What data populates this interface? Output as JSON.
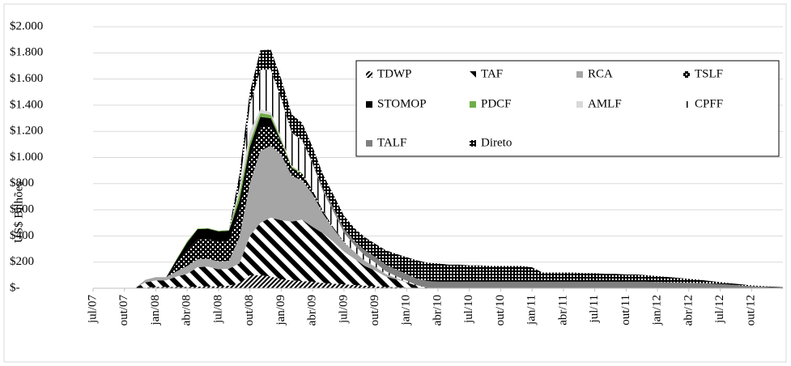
{
  "chart_data": {
    "type": "stacked_area",
    "y_label": "US$ Bilhões",
    "categories": [
      "jul/07",
      null,
      null,
      "out/07",
      null,
      null,
      "jan/08",
      null,
      null,
      "abr/08",
      null,
      null,
      "jul/08",
      null,
      null,
      "out/08",
      null,
      null,
      "jan/09",
      null,
      null,
      "abr/09",
      null,
      null,
      "jul/09",
      null,
      null,
      "out/09",
      null,
      null,
      "jan/10",
      null,
      null,
      "abr/10",
      null,
      null,
      "jul/10",
      null,
      null,
      "out/10",
      null,
      null,
      "jan/11",
      null,
      null,
      "abr/11",
      null,
      null,
      "jul/11",
      null,
      null,
      "out/11",
      null,
      null,
      "jan/12",
      null,
      null,
      "abr/12",
      null,
      null,
      "jul/12",
      null,
      null,
      "out/12",
      null,
      null,
      null
    ],
    "ylim": [
      0,
      2000
    ],
    "yticks": [
      {
        "value": 0,
        "label": "$-"
      },
      {
        "value": 200,
        "label": "$200"
      },
      {
        "value": 400,
        "label": "$400"
      },
      {
        "value": 600,
        "label": "$600"
      },
      {
        "value": 800,
        "label": "$800"
      },
      {
        "value": 1000,
        "label": "$1.000"
      },
      {
        "value": 1200,
        "label": "$1.200"
      },
      {
        "value": 1400,
        "label": "$1.400"
      },
      {
        "value": 1600,
        "label": "$1.600"
      },
      {
        "value": 1800,
        "label": "$1.800"
      },
      {
        "value": 2000,
        "label": "$2.000"
      }
    ],
    "grid": true,
    "legend": "upper right",
    "series": [
      {
        "name": "TDWP",
        "color": "#000000",
        "values": [
          0,
          0,
          0,
          0,
          1,
          5,
          10,
          10,
          10,
          10,
          12,
          15,
          15,
          20,
          40,
          100,
          100,
          90,
          70,
          60,
          55,
          50,
          40,
          35,
          30,
          25,
          20,
          15,
          10,
          8,
          5,
          3,
          2,
          0,
          0,
          0,
          0,
          0,
          0,
          0,
          0,
          0,
          0,
          0,
          0,
          0,
          0,
          0,
          0,
          0,
          0,
          0,
          0,
          0,
          0,
          0,
          0,
          0,
          0,
          0,
          0,
          0,
          0,
          0,
          0,
          0,
          0
        ]
      },
      {
        "name": "TAF",
        "color": "#000000",
        "values": [
          0,
          0,
          0,
          0,
          0,
          40,
          50,
          50,
          80,
          100,
          150,
          150,
          130,
          130,
          150,
          300,
          400,
          450,
          450,
          450,
          470,
          420,
          380,
          320,
          250,
          200,
          150,
          120,
          80,
          60,
          40,
          15,
          3,
          0,
          0,
          0,
          0,
          0,
          0,
          0,
          0,
          0,
          0,
          0,
          0,
          0,
          0,
          0,
          0,
          0,
          0,
          0,
          0,
          0,
          0,
          0,
          0,
          0,
          0,
          0,
          0,
          0,
          0,
          0,
          0,
          0,
          0
        ]
      },
      {
        "name": "RCA",
        "color": "#a6a6a6",
        "values": [
          0,
          0,
          0,
          0,
          0,
          20,
          25,
          25,
          40,
          60,
          60,
          60,
          60,
          60,
          200,
          400,
          550,
          550,
          500,
          350,
          300,
          250,
          150,
          100,
          70,
          55,
          40,
          30,
          20,
          10,
          3,
          0,
          0,
          0,
          0,
          0,
          0,
          0,
          0,
          0,
          0,
          0,
          0,
          0,
          0,
          0,
          0,
          0,
          0,
          0,
          0,
          0,
          0,
          0,
          0,
          0,
          0,
          0,
          0,
          0,
          0,
          0,
          0,
          0,
          0,
          0,
          0
        ]
      },
      {
        "name": "TSLF",
        "color": "#000000",
        "values": [
          0,
          0,
          0,
          0,
          0,
          0,
          0,
          0,
          60,
          120,
          150,
          150,
          150,
          150,
          200,
          200,
          180,
          150,
          100,
          60,
          50,
          30,
          20,
          10,
          5,
          0,
          0,
          0,
          0,
          0,
          0,
          0,
          0,
          0,
          0,
          0,
          0,
          0,
          0,
          0,
          0,
          0,
          0,
          0,
          0,
          0,
          0,
          0,
          0,
          0,
          0,
          0,
          0,
          0,
          0,
          0,
          0,
          0,
          0,
          0,
          0,
          0,
          0,
          0,
          0,
          0,
          0
        ]
      },
      {
        "name": "STOMOP",
        "color": "#000000",
        "values": [
          0,
          0,
          0,
          0,
          0,
          0,
          0,
          0,
          30,
          60,
          80,
          80,
          80,
          80,
          80,
          80,
          80,
          60,
          0,
          0,
          0,
          0,
          0,
          0,
          0,
          0,
          0,
          0,
          0,
          0,
          0,
          0,
          0,
          0,
          0,
          0,
          0,
          0,
          0,
          0,
          0,
          0,
          0,
          0,
          0,
          0,
          0,
          0,
          0,
          0,
          0,
          0,
          0,
          0,
          0,
          0,
          0,
          0,
          0,
          0,
          0,
          0,
          0,
          0,
          0,
          0,
          0
        ]
      },
      {
        "name": "PDCF",
        "color": "#70ad47",
        "values": [
          0,
          0,
          0,
          0,
          0,
          0,
          0,
          0,
          5,
          10,
          5,
          5,
          5,
          5,
          50,
          40,
          30,
          25,
          15,
          10,
          5,
          0,
          0,
          0,
          0,
          0,
          0,
          0,
          0,
          0,
          0,
          0,
          0,
          0,
          0,
          0,
          0,
          0,
          0,
          0,
          0,
          0,
          0,
          0,
          0,
          0,
          0,
          0,
          0,
          0,
          0,
          0,
          0,
          0,
          0,
          0,
          0,
          0,
          0,
          0,
          0,
          0,
          0,
          0,
          0,
          0,
          0
        ]
      },
      {
        "name": "AMLF",
        "color": "#d9d9d9",
        "values": [
          0,
          0,
          0,
          0,
          0,
          0,
          0,
          0,
          0,
          0,
          0,
          0,
          0,
          0,
          50,
          80,
          30,
          20,
          15,
          10,
          0,
          0,
          0,
          0,
          0,
          0,
          0,
          0,
          0,
          0,
          0,
          0,
          0,
          0,
          0,
          0,
          0,
          0,
          0,
          0,
          0,
          0,
          0,
          0,
          0,
          0,
          0,
          0,
          0,
          0,
          0,
          0,
          0,
          0,
          0,
          0,
          0,
          0,
          0,
          0,
          0,
          0,
          0,
          0,
          0,
          0,
          0
        ]
      },
      {
        "name": "CPFF",
        "color": "#000000",
        "values": [
          0,
          0,
          0,
          0,
          0,
          0,
          0,
          0,
          0,
          0,
          0,
          0,
          0,
          0,
          0,
          200,
          300,
          330,
          300,
          250,
          250,
          200,
          150,
          120,
          70,
          50,
          40,
          30,
          20,
          15,
          10,
          5,
          0,
          0,
          0,
          0,
          0,
          0,
          0,
          0,
          0,
          0,
          0,
          0,
          0,
          0,
          0,
          0,
          0,
          0,
          0,
          0,
          0,
          0,
          0,
          0,
          0,
          0,
          0,
          0,
          0,
          0,
          0,
          0,
          0,
          0,
          0
        ]
      },
      {
        "name": "TALF",
        "color": "#7f7f7f",
        "values": [
          0,
          0,
          0,
          0,
          0,
          0,
          0,
          0,
          0,
          0,
          0,
          0,
          0,
          0,
          0,
          0,
          0,
          0,
          0,
          0,
          5,
          10,
          20,
          30,
          30,
          30,
          40,
          45,
          50,
          50,
          50,
          50,
          50,
          50,
          50,
          50,
          50,
          50,
          50,
          50,
          50,
          50,
          50,
          50,
          50,
          50,
          50,
          50,
          50,
          50,
          50,
          50,
          50,
          50,
          48,
          46,
          44,
          42,
          40,
          36,
          32,
          28,
          22,
          16,
          12,
          8,
          5
        ]
      },
      {
        "name": "Direto",
        "color": "#000000",
        "values": [
          0,
          0,
          0,
          0,
          0,
          0,
          0,
          0,
          0,
          0,
          0,
          0,
          0,
          0,
          100,
          100,
          150,
          150,
          150,
          140,
          130,
          120,
          110,
          100,
          100,
          100,
          100,
          100,
          110,
          120,
          130,
          140,
          140,
          140,
          130,
          130,
          125,
          125,
          120,
          120,
          120,
          120,
          110,
          70,
          70,
          70,
          70,
          65,
          65,
          60,
          60,
          55,
          55,
          50,
          45,
          40,
          35,
          30,
          25,
          20,
          15,
          10,
          8,
          6,
          5,
          4,
          3
        ]
      }
    ]
  }
}
